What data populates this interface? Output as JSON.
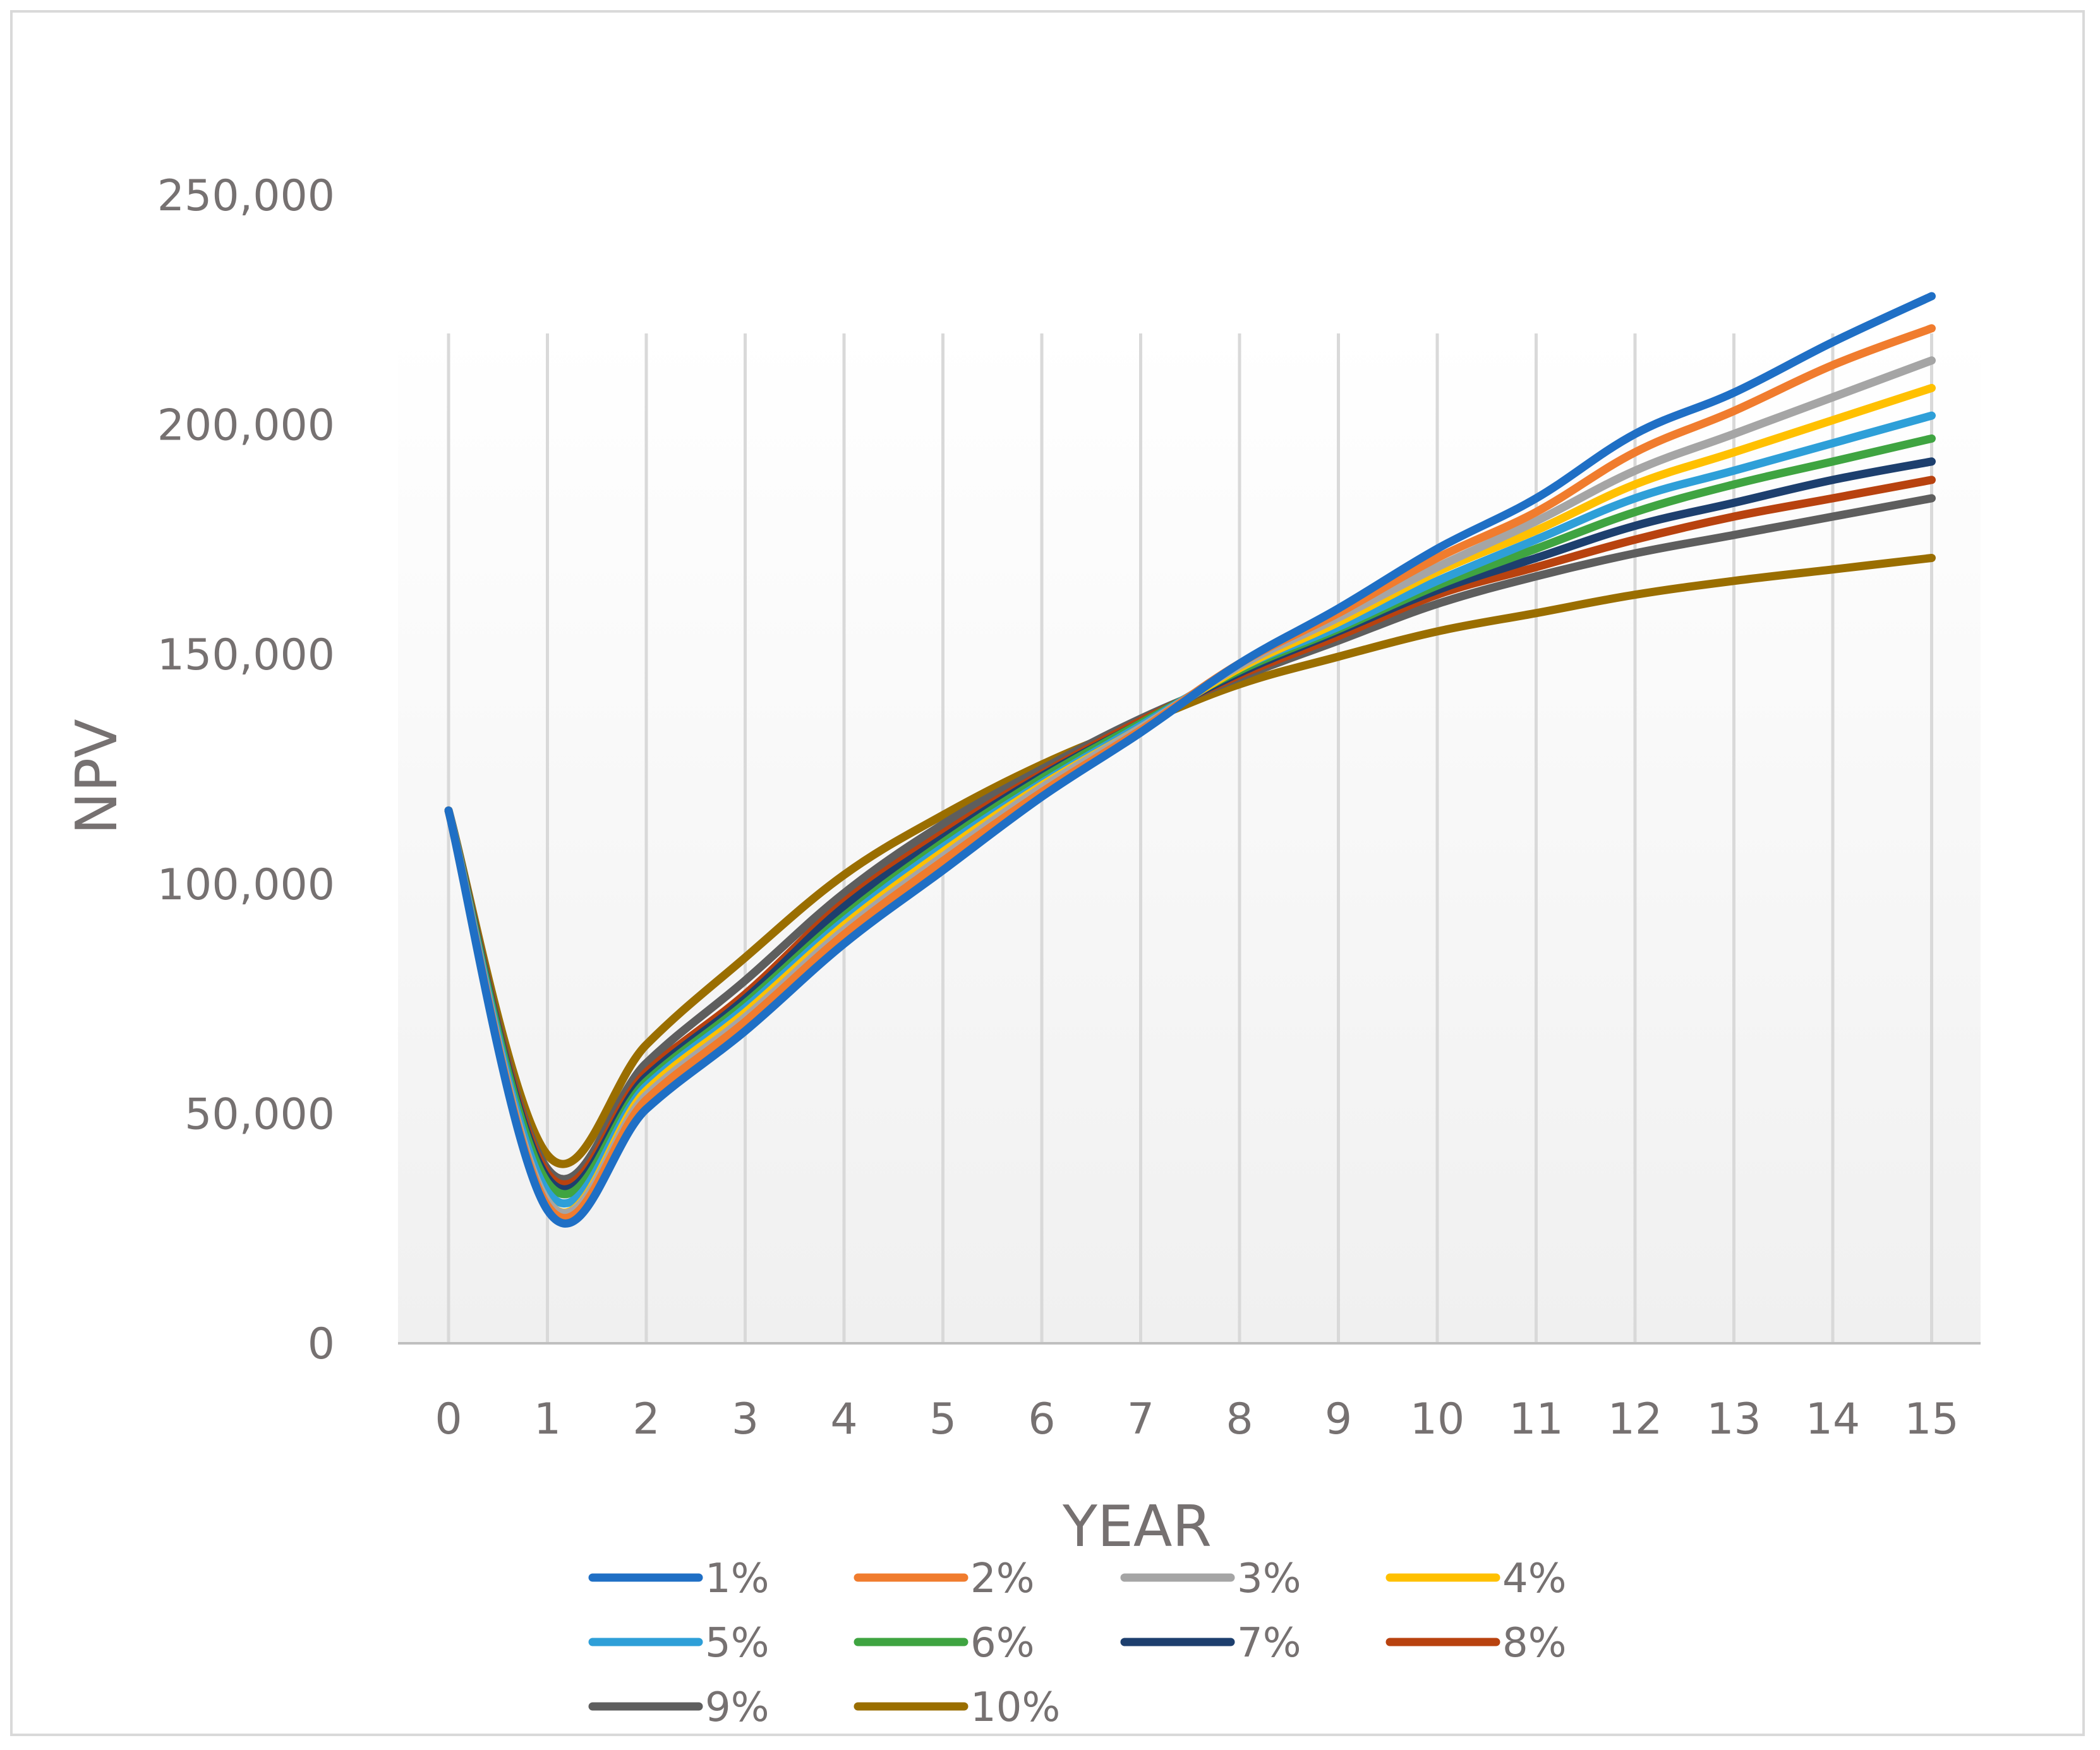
{
  "chart_data": {
    "type": "line",
    "title": "",
    "xlabel": "YEAR",
    "ylabel": "NPV",
    "x": [
      0,
      1,
      2,
      3,
      4,
      5,
      6,
      7,
      8,
      9,
      10,
      11,
      12,
      13,
      14,
      15
    ],
    "ylim": [
      0,
      250000
    ],
    "yticks": [
      0,
      50000,
      100000,
      150000,
      200000,
      250000
    ],
    "ytick_labels": [
      "0",
      "50,000",
      "100,000",
      "150,000",
      "200,000",
      "250,000"
    ],
    "grid": "vertical",
    "legend_position": "bottom",
    "series": [
      {
        "name": "1%",
        "color": "#1f6fc5",
        "values": [
          116000,
          29000,
          51000,
          68000,
          87000,
          103000,
          119000,
          133000,
          148000,
          160000,
          173000,
          184000,
          198000,
          207000,
          218000,
          228000
        ]
      },
      {
        "name": "2%",
        "color": "#f07c2e",
        "values": [
          116000,
          30000,
          53000,
          70000,
          89000,
          105000,
          120000,
          133500,
          148000,
          159000,
          171000,
          181000,
          194000,
          203000,
          213000,
          221000
        ]
      },
      {
        "name": "3%",
        "color": "#a5a5a5",
        "values": [
          116000,
          31000,
          54000,
          71000,
          90000,
          106000,
          121000,
          134000,
          147500,
          158000,
          169000,
          179000,
          190000,
          198000,
          206000,
          214000
        ]
      },
      {
        "name": "4%",
        "color": "#ffc000",
        "values": [
          116000,
          31000,
          55000,
          72000,
          91000,
          107000,
          121500,
          134000,
          147000,
          157000,
          168000,
          177000,
          187000,
          194000,
          201000,
          208000
        ]
      },
      {
        "name": "5%",
        "color": "#2e9fd8",
        "values": [
          116000,
          33000,
          56000,
          73000,
          92000,
          108000,
          122000,
          134500,
          147000,
          156000,
          166000,
          175000,
          184000,
          190000,
          196000,
          202000
        ]
      },
      {
        "name": "6%",
        "color": "#3fa441",
        "values": [
          116000,
          35000,
          57000,
          74000,
          93000,
          109000,
          123000,
          135000,
          146500,
          155500,
          165000,
          173000,
          181000,
          187000,
          192000,
          197000
        ]
      },
      {
        "name": "7%",
        "color": "#1d3f6e",
        "values": [
          116000,
          36000,
          58000,
          75000,
          95000,
          110000,
          123500,
          135000,
          146000,
          155000,
          164000,
          171000,
          178000,
          183000,
          188000,
          192000
        ]
      },
      {
        "name": "8%",
        "color": "#b8420f",
        "values": [
          116000,
          37000,
          59000,
          76000,
          96000,
          111000,
          124000,
          135500,
          145500,
          154000,
          163000,
          169000,
          175000,
          180000,
          184000,
          188000
        ]
      },
      {
        "name": "9%",
        "color": "#5e5e5e",
        "values": [
          116000,
          38000,
          61000,
          79000,
          98000,
          113000,
          125000,
          136000,
          145000,
          153000,
          161000,
          167000,
          172000,
          176000,
          180000,
          184000
        ]
      },
      {
        "name": "10%",
        "color": "#9a6e00",
        "values": [
          116000,
          41000,
          65000,
          84000,
          102000,
          115000,
          126000,
          135000,
          143500,
          149500,
          155000,
          159000,
          163000,
          166000,
          168500,
          171000
        ]
      }
    ]
  }
}
